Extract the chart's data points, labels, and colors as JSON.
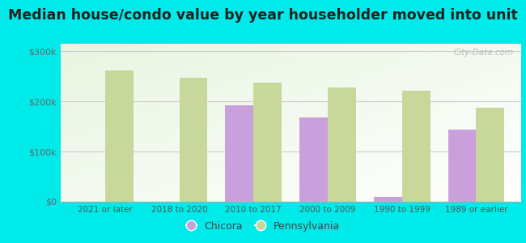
{
  "title": "Median house/condo value by year householder moved into unit",
  "categories": [
    "2021 or later",
    "2018 to 2020",
    "2010 to 2017",
    "2000 to 2009",
    "1990 to 1999",
    "1989 or earlier"
  ],
  "chicora_values": [
    null,
    null,
    193000,
    168000,
    10000,
    143000
  ],
  "pennsylvania_values": [
    262000,
    247000,
    237000,
    228000,
    222000,
    187000
  ],
  "chicora_color": "#c9a0dc",
  "pennsylvania_color": "#c8d89a",
  "background_outer": "#00eaea",
  "plot_bg_color": "#e8f5e0",
  "title_fontsize": 12.5,
  "ylabel_ticks": [
    0,
    100000,
    200000,
    300000
  ],
  "ylabel_labels": [
    "$0",
    "$100k",
    "$200k",
    "$300k"
  ],
  "ylim": [
    0,
    315000
  ],
  "bar_width": 0.38,
  "legend_labels": [
    "Chicora",
    "Pennsylvania"
  ],
  "watermark": "City-Data.com"
}
